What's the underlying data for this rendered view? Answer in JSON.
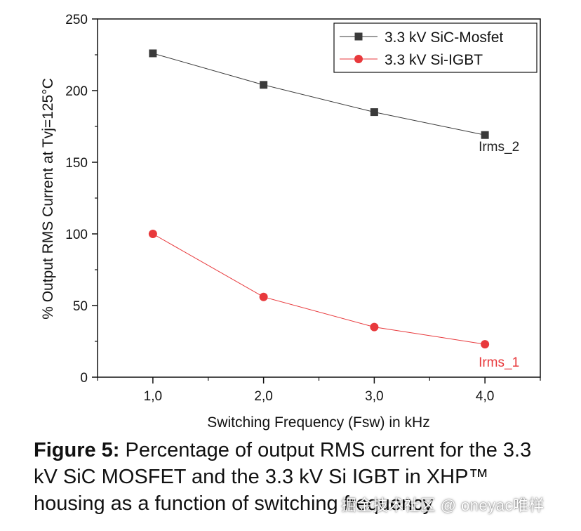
{
  "chart_data": {
    "type": "line",
    "x": [
      1.0,
      2.0,
      3.0,
      4.0
    ],
    "x_tick_labels": [
      "1,0",
      "2,0",
      "3,0",
      "4,0"
    ],
    "y_ticks": [
      0,
      50,
      100,
      150,
      200,
      250
    ],
    "xlim": [
      0.5,
      4.5
    ],
    "ylim": [
      0,
      250
    ],
    "xlabel": "Switching Frequency (Fsw) in kHz",
    "ylabel": "% Output RMS Current at Tvj=125°C",
    "legend_position": "top-right",
    "series": [
      {
        "name": "3.3 kV SiC-Mosfet",
        "values": [
          226,
          204,
          185,
          169
        ],
        "color": "#3a3a3a",
        "marker": "square",
        "annotation": "Irms_2"
      },
      {
        "name": "3.3 kV Si-IGBT",
        "values": [
          100,
          56,
          35,
          23
        ],
        "color": "#e8393c",
        "marker": "circle",
        "annotation": "Irms_1"
      }
    ]
  },
  "caption": {
    "label": "Figure 5:",
    "text": " Percentage of output RMS current for the 3.3 kV SiC MOSFET and the 3.3 kV Si IGBT in XHP™ housing as a function of switching frequency"
  },
  "watermark": "掘金技术社区 @ oneyac唯样"
}
